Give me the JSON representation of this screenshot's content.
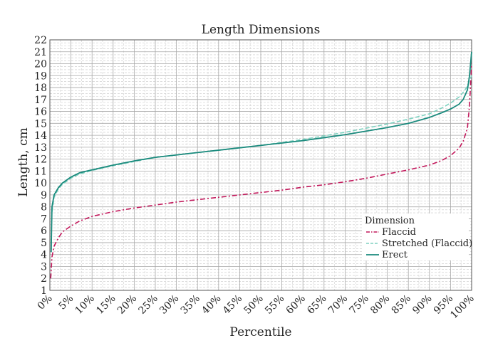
{
  "chart_data": {
    "type": "line",
    "title": "Length Dimensions",
    "xlabel": "Percentile",
    "ylabel": "Length, cm",
    "xlim": [
      0,
      100
    ],
    "ylim": [
      1,
      22
    ],
    "x_ticks": [
      "0%",
      "5%",
      "10%",
      "15%",
      "20%",
      "25%",
      "30%",
      "35%",
      "40%",
      "45%",
      "50%",
      "55%",
      "60%",
      "65%",
      "70%",
      "75%",
      "80%",
      "85%",
      "90%",
      "95%",
      "100%"
    ],
    "y_ticks": [
      1,
      2,
      3,
      4,
      5,
      6,
      7,
      8,
      9,
      10,
      11,
      12,
      13,
      14,
      15,
      16,
      17,
      18,
      19,
      20,
      21,
      22
    ],
    "grid": true,
    "legend": {
      "title": "Dimension",
      "placement": "bottom-right"
    },
    "series": [
      {
        "name": "Flaccid",
        "color": "#c2185b",
        "style": "dash-dot",
        "x": [
          0.2,
          0.5,
          1,
          2,
          3,
          5,
          7,
          10,
          15,
          20,
          25,
          30,
          35,
          40,
          45,
          50,
          55,
          60,
          65,
          70,
          75,
          80,
          85,
          90,
          93,
          95,
          97,
          98,
          99,
          99.5,
          100
        ],
        "y": [
          2.0,
          3.8,
          4.7,
          5.4,
          5.9,
          6.4,
          6.8,
          7.2,
          7.6,
          7.9,
          8.15,
          8.4,
          8.6,
          8.8,
          9.0,
          9.2,
          9.4,
          9.65,
          9.85,
          10.1,
          10.4,
          10.75,
          11.1,
          11.5,
          11.9,
          12.3,
          12.9,
          13.5,
          14.6,
          16.5,
          20.0
        ]
      },
      {
        "name": "Stretched (Flaccid)",
        "color": "#7fd1c0",
        "style": "dashed",
        "x": [
          0.5,
          1,
          2,
          3,
          5,
          7,
          10,
          15,
          20,
          25,
          30,
          35,
          40,
          45,
          50,
          55,
          60,
          65,
          70,
          75,
          80,
          85,
          90,
          93,
          95,
          97,
          98,
          99,
          99.5,
          100
        ],
        "y": [
          7.6,
          8.8,
          9.5,
          9.9,
          10.4,
          10.75,
          11.05,
          11.45,
          11.8,
          12.15,
          12.35,
          12.55,
          12.75,
          12.95,
          13.15,
          13.4,
          13.65,
          13.95,
          14.25,
          14.6,
          14.95,
          15.35,
          15.8,
          16.3,
          16.7,
          17.2,
          17.6,
          18.1,
          18.6,
          19.0
        ]
      },
      {
        "name": "Erect",
        "color": "#1a8a7d",
        "style": "solid",
        "x": [
          0.3,
          0.5,
          1,
          2,
          3,
          5,
          7,
          10,
          15,
          20,
          25,
          30,
          35,
          40,
          45,
          50,
          55,
          60,
          65,
          70,
          75,
          80,
          85,
          90,
          93,
          95,
          97,
          98,
          99,
          99.5,
          100
        ],
        "y": [
          4.2,
          8.0,
          9.0,
          9.6,
          10.0,
          10.5,
          10.85,
          11.1,
          11.5,
          11.85,
          12.15,
          12.35,
          12.55,
          12.75,
          12.95,
          13.15,
          13.35,
          13.55,
          13.8,
          14.05,
          14.35,
          14.65,
          15.0,
          15.5,
          15.9,
          16.2,
          16.6,
          17.0,
          17.8,
          19.0,
          21.0
        ]
      }
    ]
  }
}
